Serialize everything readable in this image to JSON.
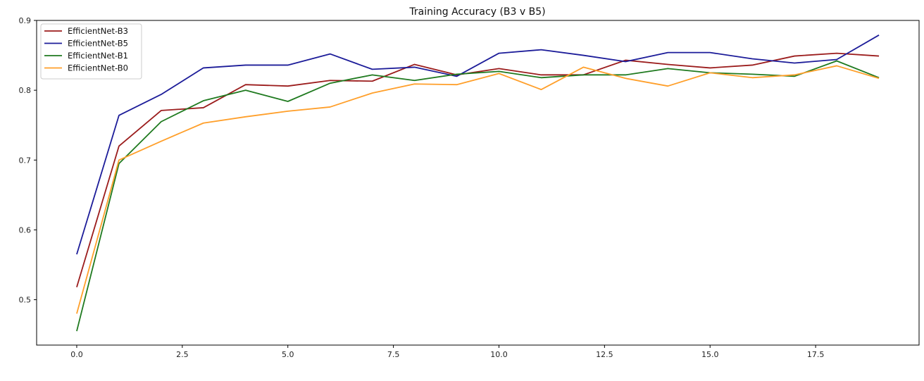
{
  "chart_data": {
    "type": "line",
    "title": "Training Accuracy (B3 v B5)",
    "xlabel": "",
    "ylabel": "",
    "xlim": [
      -0.95,
      19.95
    ],
    "ylim": [
      0.435,
      0.9
    ],
    "x": [
      0,
      1,
      2,
      3,
      4,
      5,
      6,
      7,
      8,
      9,
      10,
      11,
      12,
      13,
      14,
      15,
      16,
      17,
      18,
      19
    ],
    "xticks": [
      0.0,
      2.5,
      5.0,
      7.5,
      10.0,
      12.5,
      15.0,
      17.5
    ],
    "xtick_labels": [
      "0.0",
      "2.5",
      "5.0",
      "7.5",
      "10.0",
      "12.5",
      "15.0",
      "17.5"
    ],
    "yticks": [
      0.5,
      0.6,
      0.7,
      0.8,
      0.9
    ],
    "ytick_labels": [
      "0.5",
      "0.6",
      "0.7",
      "0.8",
      "0.9"
    ],
    "grid": false,
    "legend_position": "top-left",
    "series": [
      {
        "name": "EfficientNet-B3",
        "color": "#9b1c1c",
        "values": [
          0.518,
          0.72,
          0.771,
          0.775,
          0.808,
          0.806,
          0.814,
          0.813,
          0.837,
          0.822,
          0.831,
          0.822,
          0.822,
          0.843,
          0.837,
          0.832,
          0.836,
          0.849,
          0.853,
          0.849
        ]
      },
      {
        "name": "EfficientNet-B5",
        "color": "#1c1c99",
        "values": [
          0.565,
          0.764,
          0.794,
          0.832,
          0.836,
          0.836,
          0.852,
          0.83,
          0.833,
          0.82,
          0.853,
          0.858,
          0.85,
          0.841,
          0.854,
          0.854,
          0.845,
          0.839,
          0.844,
          0.879
        ]
      },
      {
        "name": "EfficientNet-B1",
        "color": "#1f7a1f",
        "values": [
          0.455,
          0.695,
          0.755,
          0.785,
          0.8,
          0.784,
          0.81,
          0.822,
          0.814,
          0.823,
          0.827,
          0.818,
          0.822,
          0.822,
          0.831,
          0.825,
          0.823,
          0.82,
          0.842,
          0.818
        ]
      },
      {
        "name": "EfficientNet-B0",
        "color": "#ff9f2a",
        "values": [
          0.48,
          0.7,
          0.727,
          0.753,
          0.762,
          0.77,
          0.776,
          0.796,
          0.809,
          0.808,
          0.824,
          0.801,
          0.833,
          0.817,
          0.806,
          0.825,
          0.818,
          0.822,
          0.835,
          0.817
        ]
      }
    ]
  }
}
